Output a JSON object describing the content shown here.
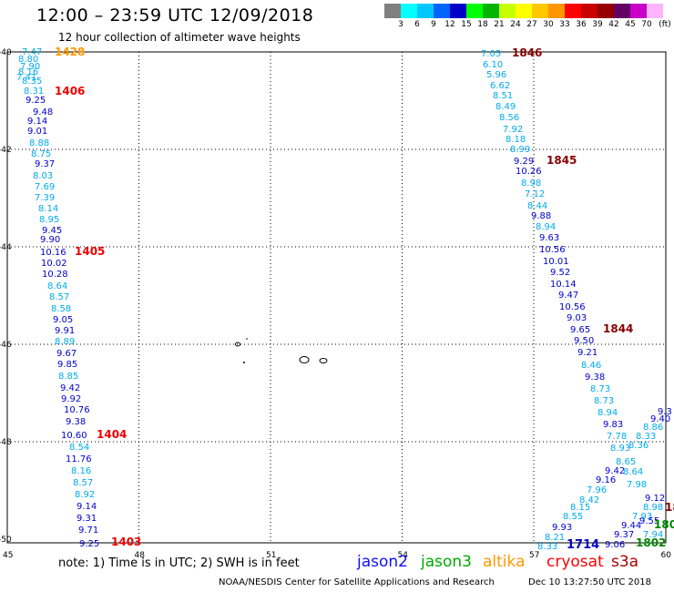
{
  "header": {
    "title": "12:00 – 23:59 UTC 12/09/2018",
    "subtitle": "12 hour collection of altimeter wave heights"
  },
  "legend": {
    "colors": [
      "#808080",
      "#00ffff",
      "#00c8ff",
      "#0064ff",
      "#0000c8",
      "#00ff00",
      "#00b400",
      "#c8ff00",
      "#ffff00",
      "#ffc800",
      "#ff9600",
      "#ff0000",
      "#c80000",
      "#960000",
      "#640064",
      "#c800c8",
      "#ffb4ff",
      "#ffffff"
    ],
    "labels": [
      "3",
      "6",
      "9",
      "12",
      "15",
      "18",
      "21",
      "24",
      "27",
      "30",
      "33",
      "36",
      "39",
      "42",
      "45",
      "70",
      "(ft)"
    ]
  },
  "map": {
    "lon_ticks": [
      "45",
      "48",
      "51",
      "54",
      "57",
      "60"
    ],
    "lat_ticks": [
      "-40",
      "-42",
      "-44",
      "-46",
      "-48",
      "-50"
    ],
    "colors": {
      "cyan": "#00aaee",
      "blue": "#0000cc",
      "red": "#ee0000",
      "darkred": "#880000",
      "orange": "#ff9900",
      "green": "#008800"
    },
    "tracks": [
      {
        "name": "track-1",
        "points": [
          [
            "7.47",
            "cyan"
          ],
          [
            "8.80",
            "cyan"
          ],
          [
            "7.90",
            "cyan"
          ],
          [
            "8.16",
            "cyan"
          ],
          [
            "7.41",
            "cyan"
          ],
          [
            "8.35",
            "cyan"
          ],
          [
            "8.31",
            "cyan"
          ],
          [
            "9.25",
            "blue"
          ],
          [
            "9.48",
            "blue"
          ],
          [
            "9.14",
            "blue"
          ],
          [
            "9.01",
            "blue"
          ],
          [
            "8.88",
            "cyan"
          ],
          [
            "8.75",
            "cyan"
          ],
          [
            "9.37",
            "blue"
          ],
          [
            "8.03",
            "cyan"
          ],
          [
            "7.69",
            "cyan"
          ],
          [
            "7.39",
            "cyan"
          ],
          [
            "8.14",
            "cyan"
          ],
          [
            "8.95",
            "cyan"
          ],
          [
            "9.45",
            "blue"
          ],
          [
            "9.90",
            "blue"
          ],
          [
            "10.16",
            "blue"
          ],
          [
            "10.02",
            "blue"
          ],
          [
            "10.28",
            "blue"
          ],
          [
            "8.64",
            "cyan"
          ],
          [
            "8.57",
            "cyan"
          ],
          [
            "8.58",
            "cyan"
          ],
          [
            "9.05",
            "blue"
          ],
          [
            "9.91",
            "blue"
          ],
          [
            "8.89",
            "cyan"
          ],
          [
            "9.67",
            "blue"
          ],
          [
            "9.85",
            "blue"
          ],
          [
            "8.85",
            "cyan"
          ],
          [
            "9.42",
            "blue"
          ],
          [
            "9.92",
            "blue"
          ],
          [
            "10.76",
            "blue"
          ],
          [
            "9.38",
            "blue"
          ],
          [
            "10.60",
            "blue"
          ],
          [
            "8.54",
            "cyan"
          ],
          [
            "11.76",
            "blue"
          ],
          [
            "8.16",
            "cyan"
          ],
          [
            "8.57",
            "cyan"
          ],
          [
            "8.92",
            "cyan"
          ],
          [
            "9.14",
            "blue"
          ],
          [
            "9.31",
            "blue"
          ],
          [
            "9.71",
            "blue"
          ],
          [
            "9.25",
            "blue"
          ]
        ]
      },
      {
        "name": "track-2",
        "points": [
          [
            "7.05",
            "cyan"
          ],
          [
            "6.10",
            "cyan"
          ],
          [
            "5.96",
            "cyan"
          ],
          [
            "6.62",
            "cyan"
          ],
          [
            "8.51",
            "cyan"
          ],
          [
            "8.49",
            "cyan"
          ],
          [
            "8.56",
            "cyan"
          ],
          [
            "7.92",
            "cyan"
          ],
          [
            "8.18",
            "cyan"
          ],
          [
            "8.99",
            "cyan"
          ],
          [
            "9.29",
            "blue"
          ],
          [
            "10.26",
            "blue"
          ],
          [
            "8.98",
            "cyan"
          ],
          [
            "7.12",
            "cyan"
          ],
          [
            "8.44",
            "cyan"
          ],
          [
            "9.88",
            "blue"
          ],
          [
            "8.94",
            "cyan"
          ],
          [
            "9.63",
            "blue"
          ],
          [
            "10.56",
            "blue"
          ],
          [
            "10.01",
            "blue"
          ],
          [
            "9.52",
            "blue"
          ],
          [
            "10.14",
            "blue"
          ],
          [
            "9.47",
            "blue"
          ],
          [
            "10.56",
            "blue"
          ],
          [
            "9.03",
            "blue"
          ],
          [
            "9.65",
            "blue"
          ],
          [
            "9.50",
            "blue"
          ],
          [
            "9.21",
            "blue"
          ],
          [
            "8.46",
            "cyan"
          ],
          [
            "9.38",
            "blue"
          ],
          [
            "8.73",
            "cyan"
          ],
          [
            "8.73",
            "cyan"
          ],
          [
            "8.94",
            "cyan"
          ],
          [
            "9.83",
            "blue"
          ],
          [
            "7.78",
            "cyan"
          ],
          [
            "8.93",
            "cyan"
          ],
          [
            "8.65",
            "cyan"
          ],
          [
            "9.42",
            "blue"
          ],
          [
            "9.16",
            "blue"
          ],
          [
            "7.96",
            "cyan"
          ],
          [
            "8.42",
            "cyan"
          ],
          [
            "8.15",
            "cyan"
          ],
          [
            "8.55",
            "cyan"
          ],
          [
            "9.93",
            "blue"
          ],
          [
            "8.21",
            "cyan"
          ],
          [
            "8.33",
            "cyan"
          ]
        ]
      },
      {
        "name": "track-3",
        "points": [
          [
            "9.3",
            "blue"
          ],
          [
            "9.40",
            "blue"
          ],
          [
            "8.86",
            "cyan"
          ],
          [
            "8.33",
            "cyan"
          ],
          [
            "8.36",
            "cyan"
          ],
          [
            "8.64",
            "cyan"
          ],
          [
            "7.98",
            "cyan"
          ],
          [
            "9.12",
            "blue"
          ],
          [
            "8.98",
            "cyan"
          ],
          [
            "7.93",
            "cyan"
          ],
          [
            "9.55",
            "blue"
          ],
          [
            "9.44",
            "blue"
          ],
          [
            "9.37",
            "blue"
          ],
          [
            "7.94",
            "cyan"
          ],
          [
            "9.06",
            "blue"
          ]
        ]
      }
    ],
    "time_labels": [
      {
        "text": "1428",
        "color": "orange"
      },
      {
        "text": "1406",
        "color": "red"
      },
      {
        "text": "1405",
        "color": "red"
      },
      {
        "text": "1404",
        "color": "red"
      },
      {
        "text": "1403",
        "color": "red"
      },
      {
        "text": "1846",
        "color": "darkred"
      },
      {
        "text": "1845",
        "color": "darkred"
      },
      {
        "text": "1844",
        "color": "darkred"
      },
      {
        "text": "1714",
        "color": "blue"
      },
      {
        "text": "1802",
        "color": "green"
      },
      {
        "text": "180",
        "color": "green"
      },
      {
        "text": "18",
        "color": "darkred"
      }
    ]
  },
  "footer": {
    "note": "note:  1) Time is in UTC;  2) SWH is in feet",
    "satellites": [
      {
        "name": "jason2",
        "color": "#1010ff"
      },
      {
        "name": "jason3",
        "color": "#00aa00"
      },
      {
        "name": "altika",
        "color": "#ff9900"
      },
      {
        "name": "cryosat",
        "color": "#ff0000"
      },
      {
        "name": "s3a",
        "color": "#aa0000"
      }
    ],
    "credit": "NOAA/NESDIS Center for Satellite Applications and Research",
    "timestamp": "Dec 10 13:27:50 UTC 2018"
  }
}
